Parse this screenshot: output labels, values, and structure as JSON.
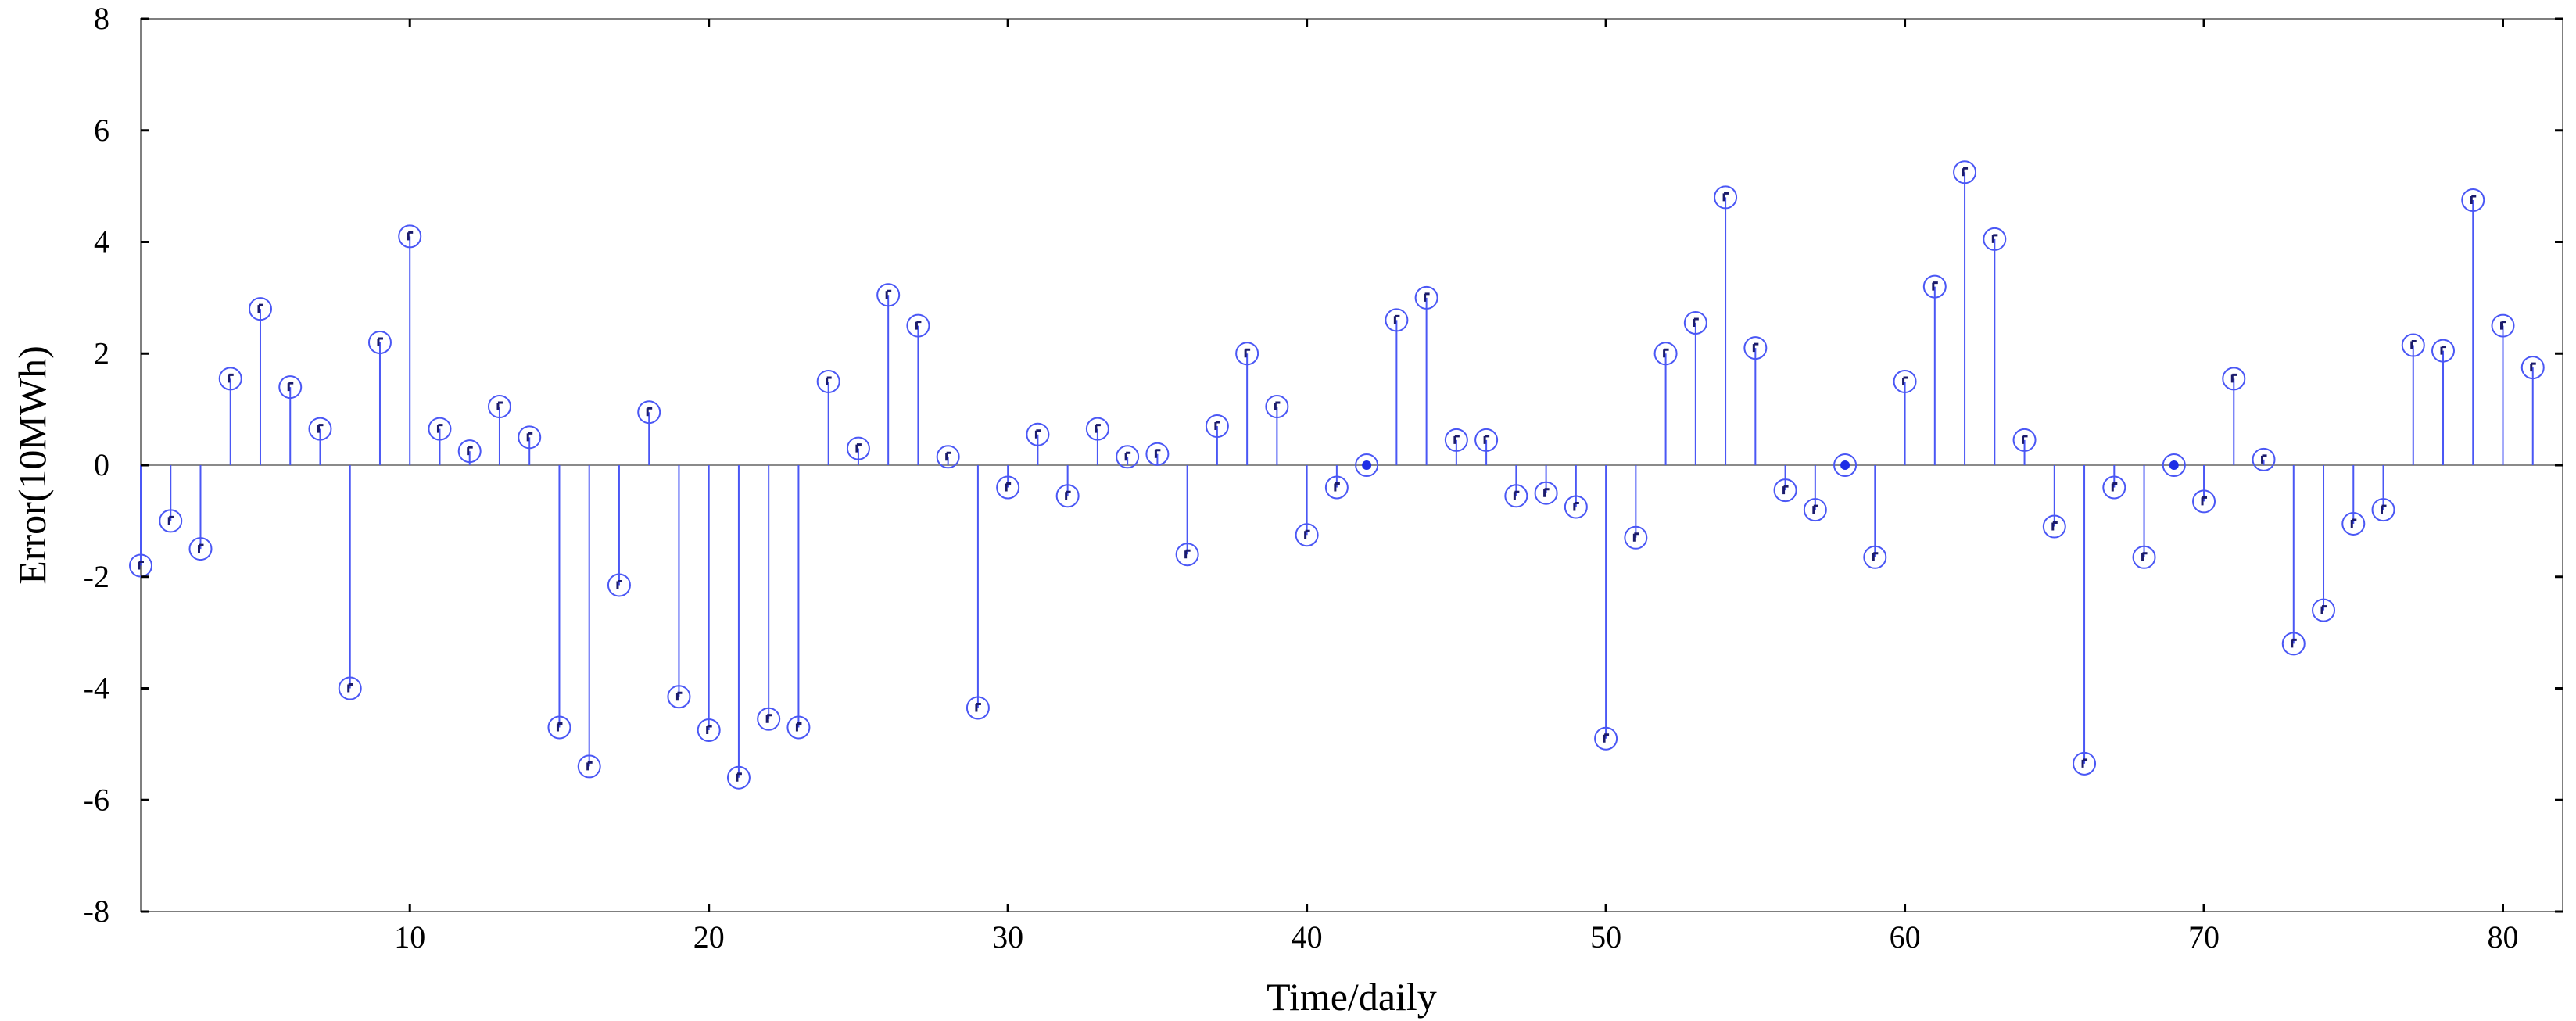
{
  "chart_data": {
    "type": "stem",
    "xlabel": "Time/daily",
    "ylabel": "Error(10MWh)",
    "xlim": [
      1,
      82
    ],
    "ylim": [
      -8,
      8
    ],
    "xticks": [
      10,
      20,
      30,
      40,
      50,
      60,
      70,
      80
    ],
    "yticks": [
      -8,
      -6,
      -4,
      -2,
      0,
      2,
      4,
      6,
      8
    ],
    "grid": false,
    "stem_color": "#4a57f5",
    "marker_color": "#1f2ee6",
    "x": [
      1,
      2,
      3,
      4,
      5,
      6,
      7,
      8,
      9,
      10,
      11,
      12,
      13,
      14,
      15,
      16,
      17,
      18,
      19,
      20,
      21,
      22,
      23,
      24,
      25,
      26,
      27,
      28,
      29,
      30,
      31,
      32,
      33,
      34,
      35,
      36,
      37,
      38,
      39,
      40,
      41,
      42,
      43,
      44,
      45,
      46,
      47,
      48,
      49,
      50,
      51,
      52,
      53,
      54,
      55,
      56,
      57,
      58,
      59,
      60,
      61,
      62,
      63,
      64,
      65,
      66,
      67,
      68,
      69,
      70,
      71,
      72,
      73,
      74,
      75,
      76,
      77,
      78,
      79,
      80,
      81
    ],
    "values": [
      -1.8,
      -1.0,
      -1.5,
      1.55,
      2.8,
      1.4,
      0.65,
      -4.0,
      2.2,
      4.1,
      0.65,
      0.25,
      1.05,
      0.5,
      -4.7,
      -5.4,
      -2.15,
      0.95,
      -4.15,
      -4.75,
      -5.6,
      -4.55,
      -4.7,
      1.5,
      0.3,
      3.05,
      2.5,
      0.15,
      -4.35,
      -0.4,
      0.55,
      -0.55,
      0.65,
      0.15,
      0.2,
      -1.6,
      0.7,
      2.0,
      1.05,
      -1.25,
      -0.4,
      0.0,
      2.6,
      3.0,
      0.45,
      0.45,
      -0.55,
      -0.5,
      -0.75,
      -4.9,
      -1.3,
      2.0,
      2.55,
      4.8,
      2.1,
      -0.45,
      -0.8,
      0.0,
      -1.65,
      1.5,
      3.2,
      5.25,
      4.05,
      0.45,
      -1.1,
      -5.35,
      -0.4,
      -1.65,
      0.0,
      -0.65,
      1.55,
      0.1,
      -3.2,
      -2.6,
      -1.05,
      -0.8,
      2.15,
      2.05,
      4.75,
      2.5,
      1.75
    ]
  }
}
